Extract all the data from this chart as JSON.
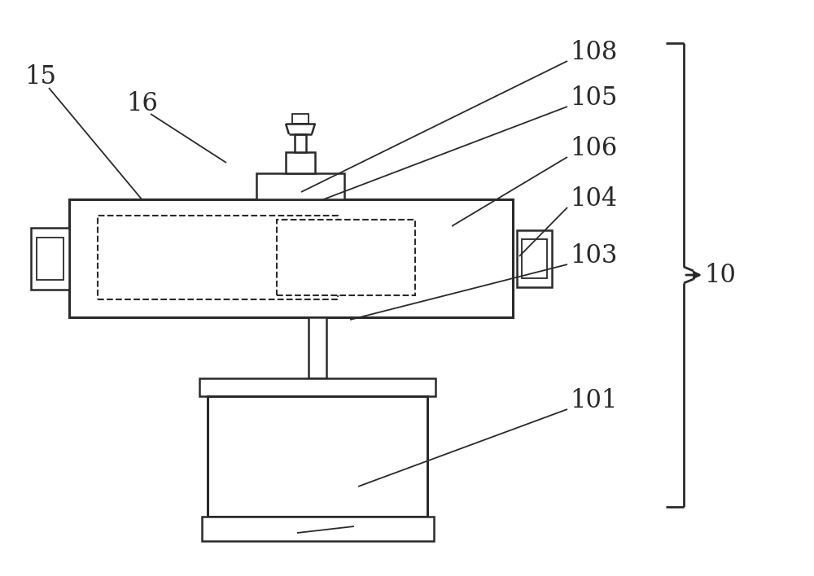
{
  "bg_color": "#ffffff",
  "line_color": "#2a2a2a",
  "dashed_color": "#2a2a2a",
  "label_color": "#2a2a2a",
  "fig_width": 10.0,
  "fig_height": 7.08,
  "dpi": 100
}
